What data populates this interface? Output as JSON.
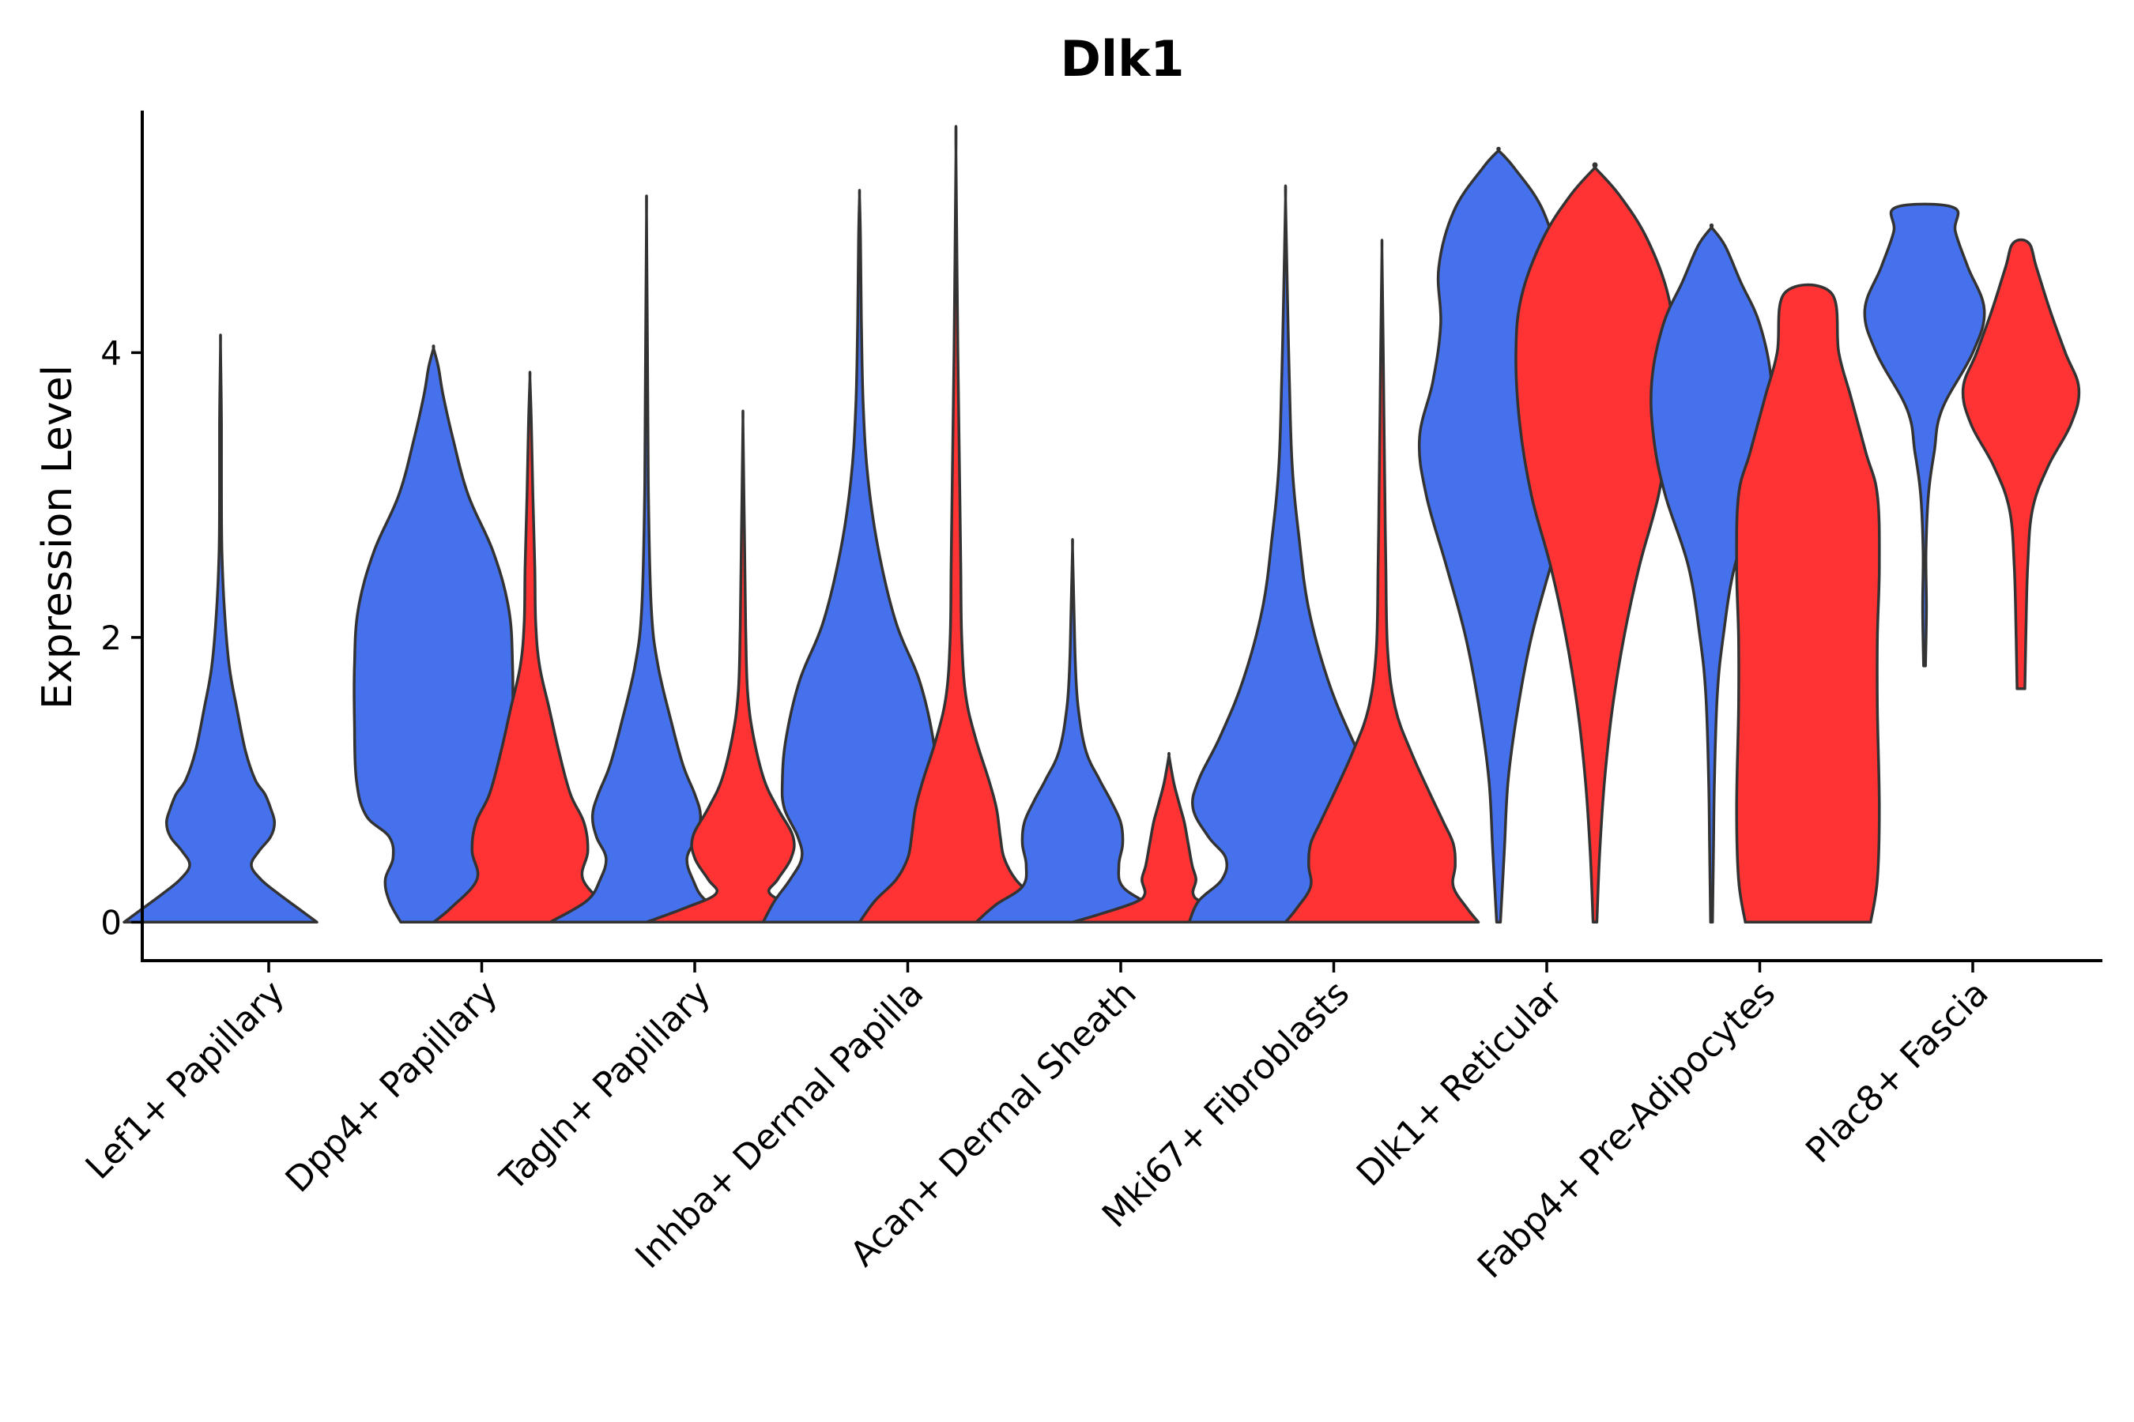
{
  "chart_data": {
    "type": "violin",
    "title": "Dlk1",
    "xlabel": "",
    "ylabel": "Expression Level",
    "ylim": [
      -0.27,
      5.7
    ],
    "yticks": [
      0,
      2,
      4
    ],
    "series_colors": [
      "#4571ED",
      "#FF3333"
    ],
    "categories": [
      "Lef1+ Papillary",
      "Dpp4+ Papillary",
      "Tagln+ Papillary",
      "Inhba+ Dermal Papilla",
      "Acan+ Dermal Sheath",
      "Mki67+ Fibroblasts",
      "Dlk1+ Reticular",
      "Fabp4+ Pre-Adipocytes",
      "Plac8+ Fascia"
    ],
    "violins": [
      {
        "category": 0,
        "group": 0,
        "ymin": 0,
        "ymax": 4.05,
        "shape": [
          [
            0,
            1.0
          ],
          [
            0.1,
            0.8
          ],
          [
            0.2,
            0.6
          ],
          [
            0.3,
            0.42
          ],
          [
            0.4,
            0.32
          ],
          [
            0.5,
            0.4
          ],
          [
            0.6,
            0.52
          ],
          [
            0.7,
            0.56
          ],
          [
            0.8,
            0.52
          ],
          [
            0.9,
            0.46
          ],
          [
            1.0,
            0.36
          ],
          [
            1.2,
            0.26
          ],
          [
            1.5,
            0.17
          ],
          [
            1.8,
            0.09
          ],
          [
            2.2,
            0.04
          ],
          [
            2.6,
            0.015
          ],
          [
            3.0,
            0.01
          ],
          [
            3.5,
            0.01
          ],
          [
            4.05,
            0.0
          ]
        ]
      },
      {
        "category": 1,
        "group": 0,
        "ymin": 0,
        "ymax": 4.03,
        "shape": [
          [
            0,
            0.34
          ],
          [
            0.15,
            0.46
          ],
          [
            0.3,
            0.5
          ],
          [
            0.45,
            0.42
          ],
          [
            0.6,
            0.46
          ],
          [
            0.75,
            0.7
          ],
          [
            1.0,
            0.8
          ],
          [
            1.4,
            0.82
          ],
          [
            1.8,
            0.82
          ],
          [
            2.2,
            0.78
          ],
          [
            2.6,
            0.62
          ],
          [
            3.0,
            0.36
          ],
          [
            3.4,
            0.2
          ],
          [
            3.7,
            0.1
          ],
          [
            3.9,
            0.05
          ],
          [
            4.03,
            0.0
          ]
        ]
      },
      {
        "category": 1,
        "group": 1,
        "ymin": 0,
        "ymax": 3.82,
        "shape": [
          [
            0,
            1.0
          ],
          [
            0.1,
            0.82
          ],
          [
            0.3,
            0.55
          ],
          [
            0.5,
            0.6
          ],
          [
            0.7,
            0.56
          ],
          [
            0.9,
            0.42
          ],
          [
            1.2,
            0.3
          ],
          [
            1.5,
            0.2
          ],
          [
            1.8,
            0.1
          ],
          [
            2.1,
            0.06
          ],
          [
            2.5,
            0.05
          ],
          [
            3.0,
            0.03
          ],
          [
            3.5,
            0.015
          ],
          [
            3.82,
            0.0
          ]
        ]
      },
      {
        "category": 2,
        "group": 0,
        "ymin": 0,
        "ymax": 4.97,
        "shape": [
          [
            0,
            1.0
          ],
          [
            0.15,
            0.62
          ],
          [
            0.3,
            0.48
          ],
          [
            0.45,
            0.42
          ],
          [
            0.6,
            0.52
          ],
          [
            0.75,
            0.56
          ],
          [
            0.9,
            0.5
          ],
          [
            1.1,
            0.38
          ],
          [
            1.4,
            0.26
          ],
          [
            1.8,
            0.12
          ],
          [
            2.2,
            0.05
          ],
          [
            3.0,
            0.02
          ],
          [
            4.0,
            0.01
          ],
          [
            4.97,
            0.0
          ]
        ]
      },
      {
        "category": 2,
        "group": 1,
        "ymin": 0,
        "ymax": 3.52,
        "shape": [
          [
            0,
            1.0
          ],
          [
            0.1,
            0.6
          ],
          [
            0.2,
            0.28
          ],
          [
            0.3,
            0.36
          ],
          [
            0.45,
            0.5
          ],
          [
            0.6,
            0.52
          ],
          [
            0.8,
            0.36
          ],
          [
            1.0,
            0.22
          ],
          [
            1.3,
            0.11
          ],
          [
            1.6,
            0.05
          ],
          [
            2.0,
            0.03
          ],
          [
            2.5,
            0.02
          ],
          [
            3.0,
            0.01
          ],
          [
            3.52,
            0.0
          ]
        ]
      },
      {
        "category": 3,
        "group": 0,
        "ymin": 0,
        "ymax": 5.1,
        "shape": [
          [
            0,
            1.0
          ],
          [
            0.15,
            0.88
          ],
          [
            0.3,
            0.72
          ],
          [
            0.45,
            0.6
          ],
          [
            0.6,
            0.64
          ],
          [
            0.8,
            0.78
          ],
          [
            1.0,
            0.8
          ],
          [
            1.3,
            0.76
          ],
          [
            1.7,
            0.62
          ],
          [
            2.1,
            0.38
          ],
          [
            2.6,
            0.2
          ],
          [
            3.1,
            0.09
          ],
          [
            3.6,
            0.04
          ],
          [
            4.2,
            0.02
          ],
          [
            4.8,
            0.01
          ],
          [
            5.1,
            0.0
          ]
        ]
      },
      {
        "category": 3,
        "group": 1,
        "ymin": 0,
        "ymax": 5.4,
        "shape": [
          [
            0,
            1.0
          ],
          [
            0.15,
            0.84
          ],
          [
            0.3,
            0.62
          ],
          [
            0.45,
            0.5
          ],
          [
            0.6,
            0.46
          ],
          [
            0.8,
            0.42
          ],
          [
            1.0,
            0.34
          ],
          [
            1.3,
            0.2
          ],
          [
            1.6,
            0.1
          ],
          [
            2.0,
            0.06
          ],
          [
            2.5,
            0.05
          ],
          [
            3.0,
            0.04
          ],
          [
            4.0,
            0.02
          ],
          [
            5.4,
            0.0
          ]
        ]
      },
      {
        "category": 4,
        "group": 0,
        "ymin": 0,
        "ymax": 2.63,
        "shape": [
          [
            0,
            1.0
          ],
          [
            0.12,
            0.8
          ],
          [
            0.25,
            0.52
          ],
          [
            0.4,
            0.48
          ],
          [
            0.55,
            0.52
          ],
          [
            0.7,
            0.5
          ],
          [
            0.85,
            0.4
          ],
          [
            1.0,
            0.28
          ],
          [
            1.2,
            0.14
          ],
          [
            1.5,
            0.06
          ],
          [
            1.8,
            0.03
          ],
          [
            2.2,
            0.015
          ],
          [
            2.63,
            0.0
          ]
        ]
      },
      {
        "category": 4,
        "group": 1,
        "ymin": 0,
        "ymax": 1.17,
        "shape": [
          [
            0,
            1.0
          ],
          [
            0.06,
            0.7
          ],
          [
            0.14,
            0.35
          ],
          [
            0.2,
            0.25
          ],
          [
            0.3,
            0.28
          ],
          [
            0.4,
            0.24
          ],
          [
            0.55,
            0.2
          ],
          [
            0.7,
            0.16
          ],
          [
            0.8,
            0.12
          ],
          [
            0.95,
            0.06
          ],
          [
            1.05,
            0.03
          ],
          [
            1.17,
            0.0
          ]
        ]
      },
      {
        "category": 5,
        "group": 0,
        "ymin": 0,
        "ymax": 5.08,
        "shape": [
          [
            0,
            1.0
          ],
          [
            0.15,
            0.9
          ],
          [
            0.3,
            0.66
          ],
          [
            0.45,
            0.62
          ],
          [
            0.6,
            0.8
          ],
          [
            0.8,
            0.96
          ],
          [
            1.0,
            0.9
          ],
          [
            1.3,
            0.68
          ],
          [
            1.7,
            0.44
          ],
          [
            2.2,
            0.24
          ],
          [
            2.7,
            0.14
          ],
          [
            3.2,
            0.07
          ],
          [
            3.8,
            0.04
          ],
          [
            4.4,
            0.02
          ],
          [
            5.08,
            0.0
          ]
        ]
      },
      {
        "category": 5,
        "group": 1,
        "ymin": 0,
        "ymax": 4.72,
        "shape": [
          [
            0,
            1.0
          ],
          [
            0.1,
            0.88
          ],
          [
            0.25,
            0.74
          ],
          [
            0.4,
            0.76
          ],
          [
            0.55,
            0.74
          ],
          [
            0.7,
            0.64
          ],
          [
            0.9,
            0.5
          ],
          [
            1.2,
            0.3
          ],
          [
            1.5,
            0.14
          ],
          [
            1.9,
            0.06
          ],
          [
            2.5,
            0.04
          ],
          [
            3.0,
            0.03
          ],
          [
            3.6,
            0.02
          ],
          [
            4.2,
            0.01
          ],
          [
            4.72,
            0.0
          ]
        ]
      },
      {
        "category": 6,
        "group": 0,
        "ymin": 0,
        "ymax": 5.42,
        "shape": [
          [
            0,
            0.02
          ],
          [
            0.5,
            0.06
          ],
          [
            1.0,
            0.1
          ],
          [
            1.5,
            0.2
          ],
          [
            2.0,
            0.34
          ],
          [
            2.5,
            0.54
          ],
          [
            3.0,
            0.75
          ],
          [
            3.4,
            0.82
          ],
          [
            3.8,
            0.68
          ],
          [
            4.2,
            0.6
          ],
          [
            4.6,
            0.62
          ],
          [
            5.0,
            0.46
          ],
          [
            5.3,
            0.16
          ],
          [
            5.42,
            0.0
          ]
        ]
      },
      {
        "category": 6,
        "group": 1,
        "ymin": 0,
        "ymax": 5.3,
        "shape": [
          [
            0,
            0.02
          ],
          [
            0.5,
            0.05
          ],
          [
            1.0,
            0.1
          ],
          [
            1.5,
            0.18
          ],
          [
            2.0,
            0.3
          ],
          [
            2.5,
            0.46
          ],
          [
            3.0,
            0.66
          ],
          [
            3.5,
            0.78
          ],
          [
            4.0,
            0.82
          ],
          [
            4.4,
            0.76
          ],
          [
            4.8,
            0.54
          ],
          [
            5.1,
            0.26
          ],
          [
            5.3,
            0.0
          ]
        ]
      },
      {
        "category": 7,
        "group": 0,
        "ymin": 0,
        "ymax": 4.88,
        "shape": [
          [
            0,
            0.01
          ],
          [
            0.5,
            0.02
          ],
          [
            1.0,
            0.03
          ],
          [
            1.6,
            0.06
          ],
          [
            2.0,
            0.12
          ],
          [
            2.5,
            0.24
          ],
          [
            3.0,
            0.48
          ],
          [
            3.4,
            0.6
          ],
          [
            3.8,
            0.62
          ],
          [
            4.2,
            0.5
          ],
          [
            4.5,
            0.3
          ],
          [
            4.75,
            0.14
          ],
          [
            4.88,
            0.0
          ]
        ]
      },
      {
        "category": 7,
        "group": 1,
        "ymin": 0,
        "ymax": 4.42,
        "shape": [
          [
            0,
            0.65
          ],
          [
            0.3,
            0.72
          ],
          [
            0.8,
            0.74
          ],
          [
            1.5,
            0.72
          ],
          [
            2.0,
            0.72
          ],
          [
            2.5,
            0.74
          ],
          [
            3.0,
            0.72
          ],
          [
            3.3,
            0.6
          ],
          [
            3.7,
            0.44
          ],
          [
            4.0,
            0.32
          ],
          [
            4.42,
            0.24
          ]
        ]
      },
      {
        "category": 8,
        "group": 0,
        "ymin": 1.8,
        "ymax": 5.02,
        "shape": [
          [
            1.8,
            0.01
          ],
          [
            2.2,
            0.02
          ],
          [
            2.6,
            0.015
          ],
          [
            3.0,
            0.04
          ],
          [
            3.3,
            0.1
          ],
          [
            3.6,
            0.18
          ],
          [
            4.0,
            0.5
          ],
          [
            4.3,
            0.62
          ],
          [
            4.6,
            0.45
          ],
          [
            4.85,
            0.32
          ],
          [
            5.02,
            0.3
          ]
        ]
      },
      {
        "category": 8,
        "group": 1,
        "ymin": 1.64,
        "ymax": 4.77,
        "shape": [
          [
            1.64,
            0.04
          ],
          [
            2.0,
            0.05
          ],
          [
            2.5,
            0.07
          ],
          [
            2.9,
            0.12
          ],
          [
            3.2,
            0.28
          ],
          [
            3.5,
            0.52
          ],
          [
            3.75,
            0.6
          ],
          [
            4.0,
            0.46
          ],
          [
            4.3,
            0.3
          ],
          [
            4.6,
            0.16
          ],
          [
            4.77,
            0.08
          ]
        ]
      }
    ]
  }
}
